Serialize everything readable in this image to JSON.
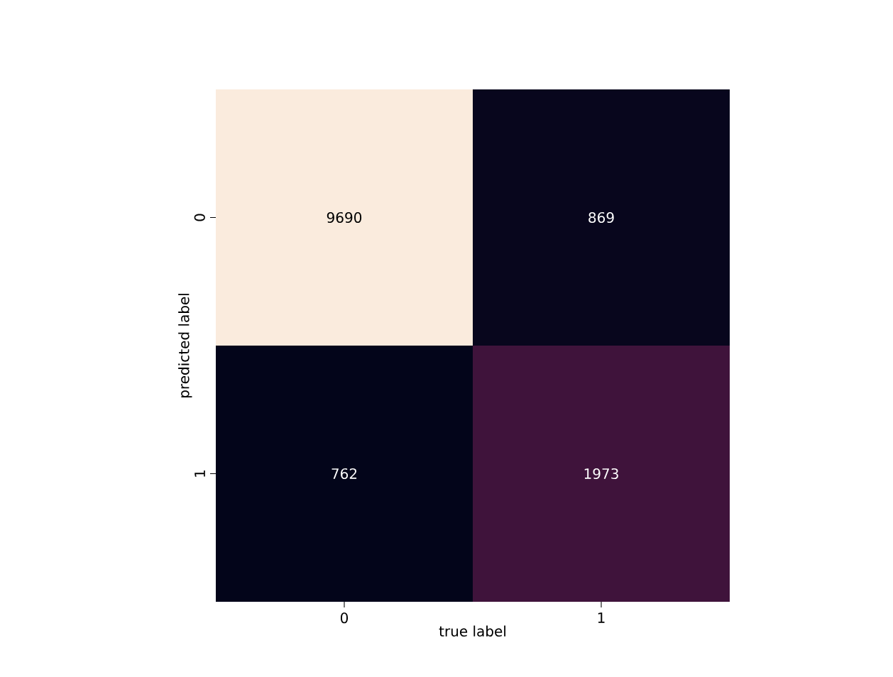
{
  "chart_data": {
    "type": "heatmap",
    "xlabel": "true label",
    "ylabel": "predicted label",
    "data_labels": true,
    "categories": [
      "0",
      "1"
    ],
    "y_categories": [
      "0",
      "1"
    ],
    "cells": [
      [
        9690,
        869
      ],
      [
        762,
        1973
      ]
    ]
  }
}
